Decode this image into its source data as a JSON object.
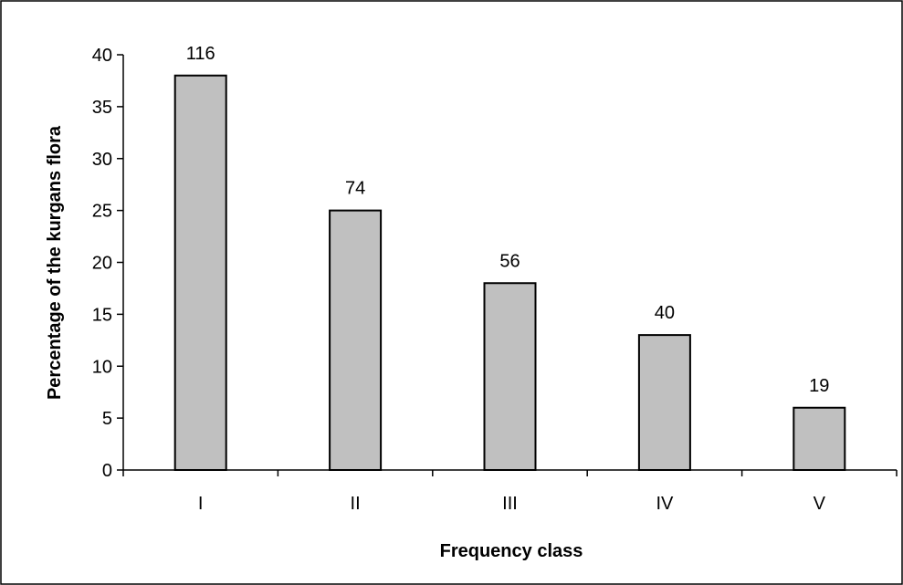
{
  "chart_data": {
    "type": "bar",
    "categories": [
      "I",
      "II",
      "III",
      "IV",
      "V"
    ],
    "values": [
      38,
      25,
      18,
      13,
      6
    ],
    "data_labels": [
      "116",
      "74",
      "56",
      "40",
      "19"
    ],
    "xlabel": "Frequency class",
    "ylabel": "Percentage of the kurgans flora",
    "ylim": [
      0,
      40
    ],
    "yticks": [
      "0",
      "5",
      "10",
      "15",
      "20",
      "25",
      "30",
      "35",
      "40"
    ],
    "grid": false,
    "legend": "none",
    "colors": {
      "bar_fill": "#c0c0c0",
      "bar_stroke": "#000000",
      "frame": "#000000"
    }
  }
}
